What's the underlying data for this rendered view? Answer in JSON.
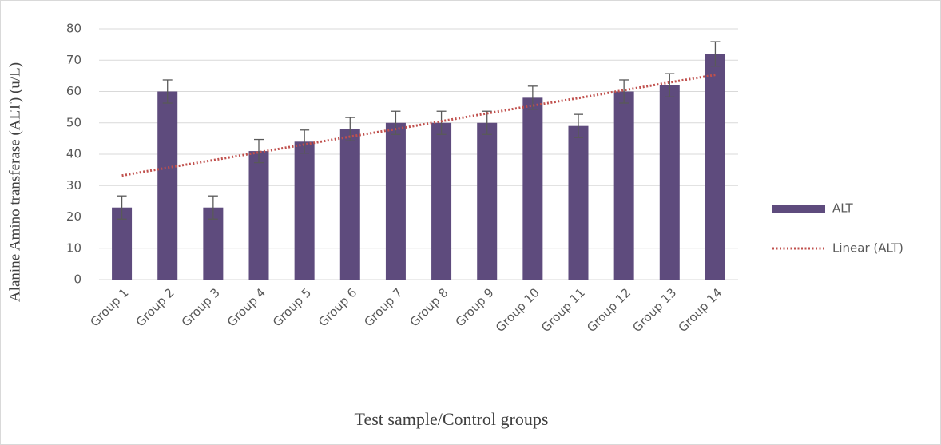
{
  "chart_data": {
    "type": "bar",
    "x_label": "Test sample/Control groups",
    "y_label": "Alanine Amino transferase (ALT) (u/L)",
    "categories": [
      "Group 1",
      "Group 2",
      "Group 3",
      "Group 4",
      "Group 5",
      "Group 6",
      "Group 7",
      "Group 8",
      "Group 9",
      "Group 10",
      "Group 11",
      "Group 12",
      "Group 13",
      "Group 14"
    ],
    "series": [
      {
        "name": "ALT",
        "color": "#5e4b7d",
        "values": [
          23,
          60,
          23,
          41,
          44,
          48,
          50,
          50,
          50,
          58,
          49,
          60,
          62,
          72
        ],
        "errors": [
          3.7,
          3.7,
          3.7,
          3.7,
          3.7,
          3.7,
          3.7,
          3.7,
          3.7,
          3.7,
          3.7,
          3.7,
          3.7,
          3.9
        ]
      },
      {
        "name": "Linear (ALT)",
        "color": "#c0504d",
        "type": "trendline",
        "values": [
          33.2,
          35.7,
          38.1,
          40.6,
          43.1,
          45.6,
          48.0,
          50.5,
          53.0,
          55.5,
          57.9,
          60.4,
          62.9,
          65.3
        ]
      }
    ],
    "ylim": [
      0,
      80
    ],
    "yticks": [
      0,
      10,
      20,
      30,
      40,
      50,
      60,
      70,
      80
    ],
    "grid": true,
    "legend": "right"
  }
}
